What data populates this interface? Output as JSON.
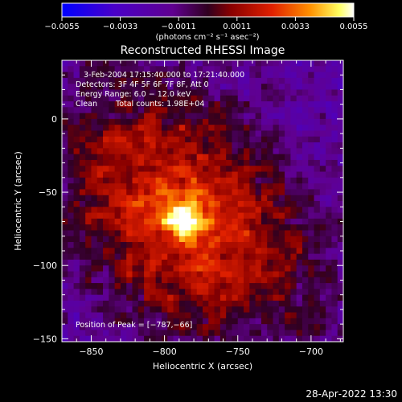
{
  "colorbar": {
    "tick_labels": [
      "−0.0055",
      "−0.0033",
      "−0.0011",
      "0.0011",
      "0.0033",
      "0.0055"
    ],
    "unit_label": "(photons cm⁻² s⁻¹ asec⁻²)",
    "range": [
      -0.0055,
      0.0055
    ]
  },
  "chart_data": {
    "type": "heatmap",
    "title": "Reconstructed RHESSI Image",
    "xlabel": "Heliocentric X (arcsec)",
    "ylabel": "Heliocentric Y (arcsec)",
    "xlim": [
      -870,
      -678
    ],
    "ylim": [
      -152,
      40
    ],
    "x_ticks": [
      -850,
      -800,
      -750,
      -700
    ],
    "y_ticks": [
      0,
      -50,
      -100,
      -150
    ],
    "x_tick_labels": [
      "−850",
      "−800",
      "−750",
      "−700"
    ],
    "y_tick_labels": [
      "0",
      "−50",
      "−100",
      "−150"
    ],
    "peak": {
      "x": -787,
      "y": -66,
      "intensity": 0.0055
    },
    "colormap": "blue-purple-red-yellow-white",
    "grid": false,
    "annotations": {
      "time_range": "3‑Feb‑2004 17:15:40.000 to 17:21:40.000",
      "detectors": "Detectors: 3F 4F 5F 6F 7F 8F, Att 0",
      "energy": "Energy Range: 6.0 − 12.0 keV",
      "method": "Clean",
      "counts": "Total counts: 1.98E+04",
      "peak_position": "Position of Peak = [−787,−66]"
    }
  },
  "footer": {
    "date_stamp": "28‑Apr‑2022 13:30"
  }
}
